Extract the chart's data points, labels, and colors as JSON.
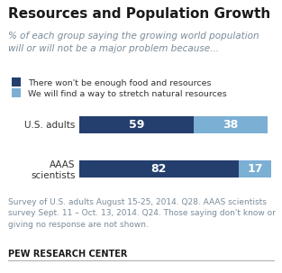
{
  "title": "Resources and Population Growth",
  "subtitle": "% of each group saying the growing world population\nwill or will not be a major problem because...",
  "categories": [
    "U.S. adults",
    "AAAS\nscientists"
  ],
  "dark_values": [
    59,
    82
  ],
  "light_values": [
    38,
    17
  ],
  "dark_color": "#243f6e",
  "light_color": "#7bafd4",
  "legend_labels": [
    "There won't be enough food and resources",
    "We will find a way to stretch natural resources"
  ],
  "footnote": "Survey of U.S. adults August 15-25, 2014. Q28. AAAS scientists\nsurvey Sept. 11 – Oct. 13, 2014. Q24. Those saying don't know or\ngiving no response are not shown.",
  "source": "PEW RESEARCH CENTER",
  "bg_color": "#ffffff",
  "title_color": "#1a1a1a",
  "subtitle_color": "#7a8b99",
  "footnote_color": "#7a8b99",
  "source_color": "#1a1a1a",
  "label_fontsize": 7.5,
  "bar_label_fontsize": 9,
  "title_fontsize": 11,
  "subtitle_fontsize": 7.5,
  "footnote_fontsize": 6.5,
  "source_fontsize": 7
}
